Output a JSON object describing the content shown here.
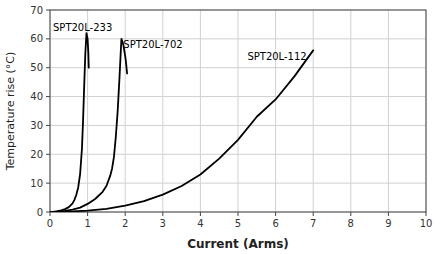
{
  "chart_data": {
    "type": "line",
    "xlabel": "Current (Arms)",
    "ylabel": "Temperature rise (°C)",
    "xlim": [
      0,
      10
    ],
    "ylim": [
      0,
      70
    ],
    "xticks": [
      0,
      1,
      2,
      3,
      4,
      5,
      6,
      7,
      8,
      9,
      10
    ],
    "yticks": [
      0,
      10,
      20,
      30,
      40,
      50,
      60,
      70
    ],
    "grid": true,
    "color": "#000000",
    "series": [
      {
        "x": [
          0,
          0.02,
          0.05,
          0.1,
          0.15,
          0.2,
          0.3,
          0.4,
          0.5,
          0.6,
          0.65,
          0.7,
          0.75,
          0.8,
          0.85,
          0.88,
          0.91,
          0.94,
          0.97,
          1.0,
          1.02,
          1.03
        ],
        "values": [
          0,
          0.02,
          0.05,
          0.1,
          0.18,
          0.3,
          0.6,
          1.0,
          1.7,
          3.0,
          4.2,
          6.0,
          8.5,
          13.0,
          22.0,
          32.0,
          44.0,
          55.0,
          62.0,
          60.0,
          55.0,
          50.0
        ]
      },
      {
        "x": [
          0,
          0.05,
          0.1,
          0.2,
          0.4,
          0.6,
          0.8,
          1.0,
          1.2,
          1.4,
          1.5,
          1.6,
          1.65,
          1.7,
          1.75,
          1.8,
          1.85,
          1.88,
          1.9,
          1.95,
          2.0,
          2.02,
          2.05
        ],
        "values": [
          0,
          0.02,
          0.05,
          0.1,
          0.4,
          0.8,
          1.5,
          2.8,
          4.5,
          7.0,
          9.0,
          12.5,
          15.0,
          19.0,
          26.0,
          35.0,
          47.0,
          55.0,
          60.0,
          58.0,
          54.0,
          52.0,
          48.0
        ]
      },
      {
        "x": [
          0,
          0.1,
          0.3,
          0.6,
          1.0,
          1.5,
          2.0,
          2.5,
          3.0,
          3.5,
          4.0,
          4.5,
          5.0,
          5.5,
          6.0,
          6.5,
          7.0
        ],
        "values": [
          0,
          0.02,
          0.08,
          0.2,
          0.5,
          1.1,
          2.2,
          3.8,
          6.0,
          9.0,
          13.0,
          18.5,
          25.0,
          33.0,
          39.0,
          47.0,
          56.0
        ]
      }
    ],
    "annotations": [
      {
        "text": "SPT20L-233",
        "x": 0.08,
        "y": 62
      },
      {
        "text": "SPT20L-702",
        "x": 1.95,
        "y": 56
      },
      {
        "text": "SPT20L-112",
        "x": 5.25,
        "y": 52
      }
    ]
  }
}
